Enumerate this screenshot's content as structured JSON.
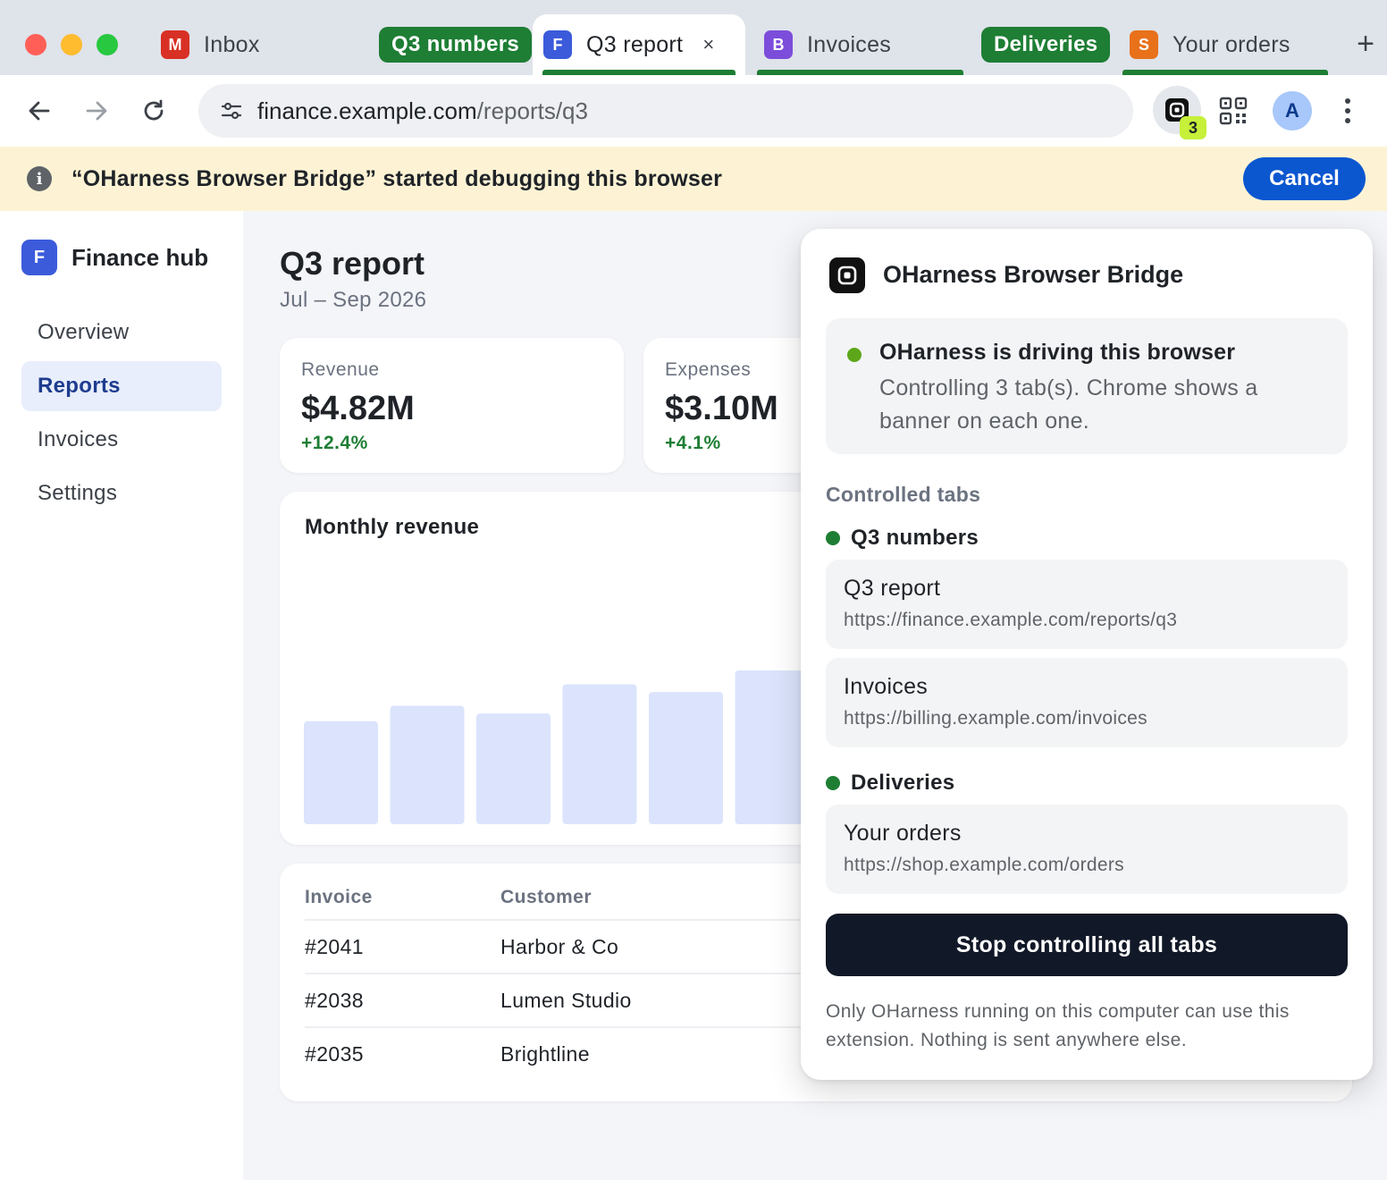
{
  "browser": {
    "tabs": [
      {
        "title": "Inbox",
        "favicon_letter": "M",
        "favicon_color": "#d93025"
      },
      {
        "title": "Q3 report",
        "favicon_letter": "F",
        "favicon_color": "#3b5bdb",
        "active": true
      },
      {
        "title": "Invoices",
        "favicon_letter": "B",
        "favicon_color": "#7c4ddb"
      },
      {
        "title": "Your orders",
        "favicon_letter": "S",
        "favicon_color": "#e8711a"
      }
    ],
    "tab_groups": [
      "Q3 numbers",
      "Deliveries"
    ],
    "group_color": "#1e7e34",
    "close_glyph": "×",
    "new_tab_glyph": "+",
    "address": {
      "host": "finance.example.com",
      "path": "/reports/q3"
    },
    "extension_badge": "3",
    "avatar_letter": "A",
    "icons": [
      "back-arrow-icon",
      "forward-arrow-icon",
      "reload-icon",
      "site-settings-icon",
      "extension-icon",
      "qr-code-icon",
      "more-menu-icon"
    ]
  },
  "infobar": {
    "icon_glyph": "i",
    "message": "“OHarness Browser Bridge” started debugging this browser",
    "cancel_label": "Cancel"
  },
  "app": {
    "brand_letter": "F",
    "brand_name": "Finance hub",
    "nav": [
      {
        "label": "Overview"
      },
      {
        "label": "Reports",
        "active": true
      },
      {
        "label": "Invoices"
      },
      {
        "label": "Settings"
      }
    ],
    "title": "Q3 report",
    "subtitle": "Jul – Sep 2026",
    "stats": [
      {
        "label": "Revenue",
        "value": "$4.82M",
        "delta": "+12.4%"
      },
      {
        "label": "Expenses",
        "value": "$3.10M",
        "delta": "+4.1%"
      }
    ],
    "chart_title": "Monthly revenue",
    "table": {
      "headers": [
        "Invoice",
        "Customer"
      ],
      "rows": [
        [
          "#2041",
          "Harbor & Co"
        ],
        [
          "#2038",
          "Lumen Studio"
        ],
        [
          "#2035",
          "Brightline"
        ]
      ]
    }
  },
  "chart_data": {
    "type": "bar",
    "title": "Monthly revenue",
    "categories": [
      "",
      "",
      "",
      "",
      "",
      ""
    ],
    "values": [
      0.67,
      0.77,
      0.72,
      0.91,
      0.86,
      1.0
    ],
    "note_visible_bars": 6,
    "color": "#dbe4fc"
  },
  "popup": {
    "title": "OHarness Browser Bridge",
    "status_title": "OHarness is driving this browser",
    "status_desc": "Controlling 3 tab(s). Chrome shows a banner on each one.",
    "status_color": "#5da619",
    "controlled_heading": "Controlled tabs",
    "groups": [
      {
        "name": "Q3 numbers",
        "tabs": [
          {
            "title": "Q3 report",
            "url": "https://finance.example.com/reports/q3"
          },
          {
            "title": "Invoices",
            "url": "https://billing.example.com/invoices"
          }
        ]
      },
      {
        "name": "Deliveries",
        "tabs": [
          {
            "title": "Your orders",
            "url": "https://shop.example.com/orders"
          }
        ]
      }
    ],
    "stop_label": "Stop controlling all tabs",
    "footnote": "Only OHarness running on this computer can use this extension. Nothing is sent anywhere else."
  }
}
